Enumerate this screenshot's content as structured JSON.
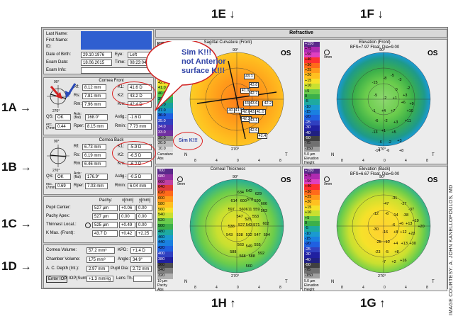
{
  "labels": {
    "top_left": "1E",
    "top_right": "1F",
    "bottom_left": "1H",
    "bottom_right": "1G",
    "left": [
      "1A",
      "1B",
      "1C",
      "1D"
    ],
    "credit": "IMAGE COURTESY: A. JOHN KANELLOPOULOS, MD"
  },
  "app": {
    "title": "Refractive",
    "patient": {
      "last_name_label": "Last Name:",
      "first_name_label": "First Name:",
      "id_label": "ID:",
      "dob_label": "Date of Birth:",
      "dob": "29.10.1976",
      "eye_label": "Eye:",
      "eye": "Left",
      "exam_date_label": "Exam Date:",
      "exam_date": "18.06.2015",
      "time_label": "Time:",
      "time": "08:23:04",
      "exam_info_label": "Exam Info:"
    },
    "cornea_front": {
      "title": "Cornea Front",
      "rf_label": "Rf:",
      "rf": "8.12 mm",
      "rs_label": "Rs:",
      "rs": "7.81 mm",
      "rm_label": "Rm:",
      "rm": "7.96 mm",
      "k1_label": "K1:",
      "k1": "41.6 D",
      "k2_label": "K2:",
      "k2": "43.2 D",
      "km_label": "Km:",
      "km": "42.4 D",
      "qs_label": "QS:",
      "qs": "OK",
      "axis_label": "Axis: (flat)",
      "axis": "168.0°",
      "astig_label": "Astig.:",
      "astig": "-1.6 D",
      "ecc_label": "ecc. (7mm)",
      "ecc": "0.44",
      "rper_label": "Rper:",
      "rper": "8.15 mm",
      "rmin_label": "Rmin:",
      "rmin": "7.73 mm",
      "angle_top": "90°",
      "angle_bottom": "270°"
    },
    "cornea_back": {
      "title": "Cornea Back",
      "rf_label": "Rf:",
      "rf": "6.73 mm",
      "rs_label": "Rs:",
      "rs": "6.19 mm",
      "rm_label": "Rm:",
      "rm": "6.46 mm",
      "k1_label": "K1:",
      "k1": "-5.9 D",
      "k2_label": "K2:",
      "k2": "-6.5 D",
      "km_label": "Km:",
      "km": "-6.2 D",
      "qs_label": "QS:",
      "qs": "OK",
      "axis_label": "Axis: (flat)",
      "axis": "176.9°",
      "astig_label": "Astig.:",
      "astig": "-0.5 D",
      "ecc_label": "ecc. (7mm)",
      "ecc": "0.69",
      "rper_label": "Rper:",
      "rper": "7.03 mm",
      "rmin_label": "Rmin:",
      "rmin": "6.04 mm",
      "angle_top": "90°",
      "angle_bottom": "270°"
    },
    "pachy": {
      "col_pachy": "Pachy:",
      "col_x": "x[mm]",
      "col_y": "y[mm]",
      "pupil_label": "Pupil Center:",
      "pupil": "527 µm",
      "pupil_x": "+0.06",
      "pupil_y": "0.00",
      "apex_label": "Pachy Apex:",
      "apex": "527 µm",
      "apex_x": "0.00",
      "apex_y": "0.00",
      "thin_label": "Thinnest Locat.:",
      "thin": "525 µm",
      "thin_x": "+0.49",
      "thin_y": "0.00",
      "kmax_label": "K Max. (Front):",
      "kmax": "43.7 D",
      "kmax_x": "+0.42",
      "kmax_y": "+2.25"
    },
    "chamber": {
      "cv_label": "Cornea Volume:",
      "cv": "57.2 mm³",
      "kpd_label": "KPD:",
      "kpd": "+1.4 D",
      "chv_label": "Chamber Volume:",
      "chv": "175 mm³",
      "angle_label": "Angle:",
      "angle": "34.9°",
      "acd_label": "A. C. Depth (Int.):",
      "acd": "2.97 mm",
      "pupil_dia_label": "Pupil Dia:",
      "pupil_dia": "2.72 mm",
      "enter_iop": "Enter IOP",
      "iop_label": "IOP(Sum):",
      "iop": "+1.3 mmHg",
      "lens_label": "Lens Th.:"
    },
    "maps": {
      "sagittal": {
        "title": "Sagittal Curvature (Front)",
        "eye": "OS",
        "scale": [
          "90.0",
          "65.0",
          "50.0",
          "46.0",
          "45.0",
          "44.0",
          "43.0",
          "42.0",
          "41.0",
          "40.0",
          "39.0",
          "38.0",
          "37.0",
          "36.0",
          "35.0",
          "34.0",
          "33.0",
          "30.0",
          "20.0",
          "10.0"
        ],
        "scale_footer": [
          "Curvature",
          "Abs"
        ],
        "values": [
          "43.1",
          "43.8",
          "42.2",
          "41.9",
          "42.7",
          "43.4",
          "43.6",
          "40.5",
          "41.5",
          "42.0",
          "43.1",
          "41.0",
          "42.2",
          "43.1",
          "42.6",
          "42.4"
        ],
        "n": "N",
        "t": "T",
        "mm": "9mm",
        "angle_top": "90°",
        "angle_bottom": "270°",
        "x_ticks": [
          "8",
          "4",
          "0",
          "4",
          "8"
        ]
      },
      "elev_front": {
        "title": "Elevation (Front)",
        "subtitle": "BFS=7.97 Float, Dia=9.00",
        "eye": "OS",
        "scale": [
          "+150",
          "+75",
          "+50",
          "+40",
          "+30",
          "+25",
          "+20",
          "+15",
          "+10",
          "+5",
          "0",
          "-5",
          "-10",
          "-15",
          "-20",
          "-25",
          "-30",
          "-40",
          "-50",
          "-75",
          "-150"
        ],
        "scale_footer": [
          "5.0 µm",
          "Elevation",
          "Height"
        ],
        "values": [
          "-15",
          "-8",
          "-5",
          "-3",
          "-2",
          "0",
          "+3",
          "-5",
          "-2",
          "+1",
          "+6",
          "+9",
          "+10",
          "-1",
          "+4",
          "+7",
          "-6",
          "-2",
          "+3",
          "+11",
          "-13",
          "+1",
          "+5",
          "-6",
          "-2",
          "+3",
          "-14",
          "-6",
          "+8"
        ],
        "n": "N",
        "t": "T",
        "mm": "9mm",
        "angle_top": "90°",
        "angle_bottom": "270°",
        "x_ticks": [
          "8",
          "4",
          "0",
          "4",
          "8"
        ]
      },
      "pachy_map": {
        "title": "Corneal Thickness",
        "eye": "OS",
        "scale": [
          "700",
          "680",
          "660",
          "640",
          "620",
          "600",
          "580",
          "560",
          "540",
          "520",
          "500",
          "480",
          "460",
          "440",
          "420",
          "400",
          "380",
          "360",
          "340",
          "320"
        ],
        "scale_footer": [
          "10 µm",
          "Pachy",
          "Abs"
        ],
        "values": [
          "634",
          "642",
          "629",
          "614",
          "600",
          "578",
          "590",
          "606",
          "597",
          "560",
          "611",
          "559",
          "563",
          "547",
          "525",
          "553",
          "527",
          "543",
          "571",
          "602",
          "538",
          "543",
          "538",
          "532",
          "547",
          "594",
          "563",
          "549",
          "555",
          "588",
          "568",
          "588",
          "592",
          "560"
        ],
        "n": "N",
        "t": "T",
        "mm": "9mm",
        "angle_top": "90°",
        "angle_bottom": "270°",
        "x_ticks": [
          "8",
          "4",
          "0",
          "4",
          "8"
        ]
      },
      "elev_back": {
        "title": "Elevation (Back)",
        "subtitle": "BFS=6.67 Float, Dia=9.00",
        "eye": "OS",
        "scale": [
          "+150",
          "+75",
          "+50",
          "+40",
          "+30",
          "+25",
          "+20",
          "+15",
          "+10",
          "+5",
          "0",
          "-5",
          "-10",
          "-15",
          "-20",
          "-25",
          "-30",
          "-40",
          "-50",
          "-75",
          "-150"
        ],
        "scale_footer": [
          "5.0 µm",
          "Elevation",
          "Height"
        ],
        "values": [
          "-47",
          "-31",
          "-27",
          "-37",
          "-12",
          "-6",
          "-14",
          "-38",
          "-6",
          "+6",
          "+13",
          "+19",
          "+20",
          "-30",
          "-16",
          "+8",
          "+12",
          "+23",
          "-25",
          "-10",
          "+4",
          "+13",
          "+30",
          "-23",
          "-5",
          "+8",
          "-7",
          "+2",
          "+16"
        ],
        "n": "N",
        "t": "T",
        "mm": "9mm",
        "angle_top": "90°",
        "angle_bottom": "270°",
        "x_ticks": [
          "8",
          "4",
          "0",
          "4",
          "8"
        ]
      }
    }
  },
  "annotations": {
    "bubble_text": "Sim K!!! not Anterior surface K!!!",
    "bubble_line1": "Sim K!!!",
    "bubble_line2": "not Anterior",
    "bubble_line3": "surface K!!!",
    "simk_small": "Sim K!!!"
  },
  "colors": {
    "annotation_red": "#d22222",
    "annotation_blue": "#2a4ab8",
    "patient_name_box": "#2f5fd0"
  }
}
